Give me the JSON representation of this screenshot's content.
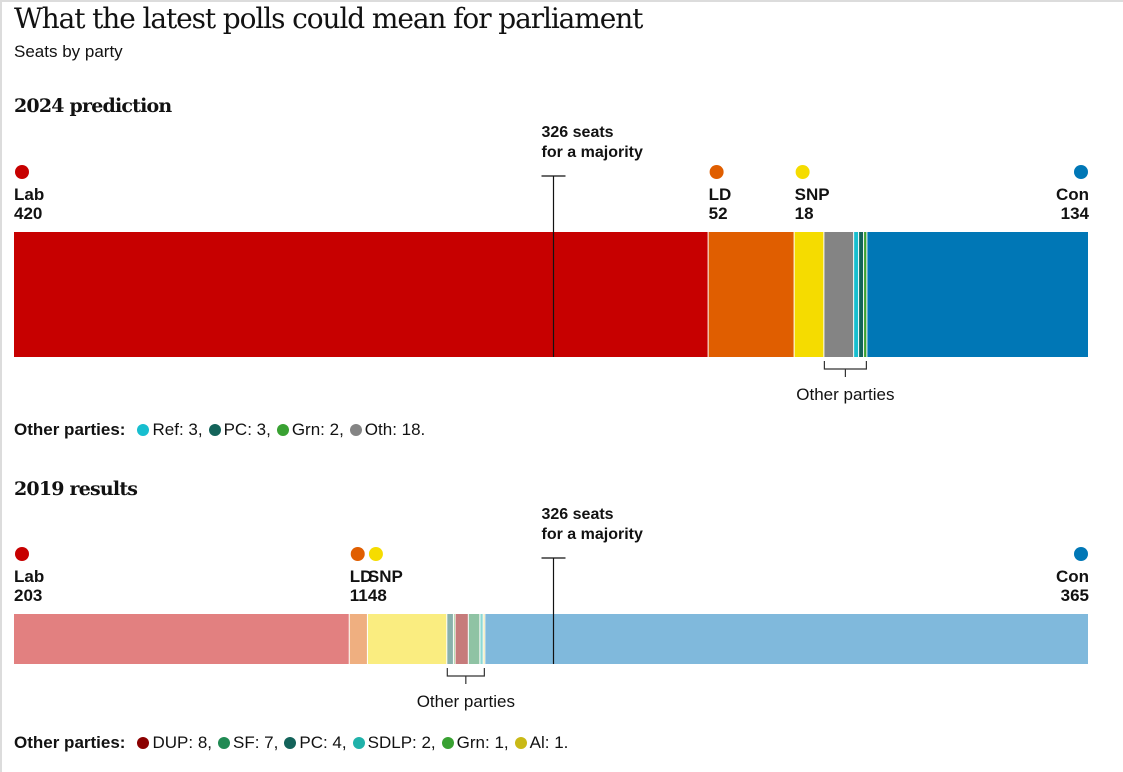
{
  "title": "What the latest polls could mean for parliament",
  "subtitle": "Seats by party",
  "total_seats": 650,
  "chart_data": [
    {
      "type": "bar",
      "orientation": "horizontal-stacked",
      "title": "2024 prediction",
      "majority": {
        "value": 326,
        "label_line1": "326 seats",
        "label_line2": "for a majority"
      },
      "segments": [
        {
          "party": "Lab",
          "seats": 420,
          "color": "#c70000",
          "labeled": true,
          "dot": "#c70000"
        },
        {
          "party": "LD",
          "seats": 52,
          "color": "#e05e00",
          "labeled": true,
          "dot": "#e05e00"
        },
        {
          "party": "SNP",
          "seats": 18,
          "color": "#f5dc00",
          "labeled": true,
          "dot": "#f5dc00"
        },
        {
          "party": "Oth",
          "seats": 18,
          "color": "#848484",
          "labeled": false
        },
        {
          "party": "Ref",
          "seats": 3,
          "color": "#17becf",
          "labeled": false
        },
        {
          "party": "PC",
          "seats": 3,
          "color": "#13635a",
          "labeled": false
        },
        {
          "party": "Grn",
          "seats": 2,
          "color": "#39a132",
          "labeled": false
        },
        {
          "party": "Con",
          "seats": 134,
          "color": "#0077b6",
          "labeled": true,
          "dot": "#0077b6",
          "align": "right"
        }
      ],
      "other_parties_label": "Other parties",
      "legend_heading": "Other parties:",
      "legend": [
        {
          "text": "Ref: 3,",
          "color": "#17becf"
        },
        {
          "text": "PC: 3,",
          "color": "#13635a"
        },
        {
          "text": "Grn: 2,",
          "color": "#39a132"
        },
        {
          "text": "Oth: 18.",
          "color": "#848484"
        }
      ]
    },
    {
      "type": "bar",
      "orientation": "horizontal-stacked",
      "title": "2019 results",
      "majority": {
        "value": 326,
        "label_line1": "326 seats",
        "label_line2": "for a majority"
      },
      "segments": [
        {
          "party": "Lab",
          "seats": 203,
          "color": "#e28080",
          "labeled": true,
          "dot": "#c70000"
        },
        {
          "party": "LD",
          "seats": 11,
          "color": "#efaf80",
          "labeled": true,
          "dot": "#e05e00"
        },
        {
          "party": "SNP",
          "seats": 48,
          "color": "#faed80",
          "labeled": true,
          "dot": "#f5dc00"
        },
        {
          "party": "PC",
          "seats": 4,
          "color": "#89b1ac",
          "labeled": false
        },
        {
          "party": "Grn",
          "seats": 1,
          "color": "#9cd098",
          "labeled": false
        },
        {
          "party": "DUP",
          "seats": 8,
          "color": "#c67b7b",
          "labeled": false
        },
        {
          "party": "SF",
          "seats": 7,
          "color": "#8fc3a4",
          "labeled": false
        },
        {
          "party": "SDLP",
          "seats": 2,
          "color": "#8cd9d4",
          "labeled": false
        },
        {
          "party": "Al",
          "seats": 1,
          "color": "#e4dc8c",
          "labeled": false
        },
        {
          "party": "Con",
          "seats": 365,
          "color": "#80b9dc",
          "labeled": true,
          "dot": "#0077b6",
          "align": "right"
        }
      ],
      "other_parties_label": "Other parties",
      "legend_heading": "Other parties:",
      "legend": [
        {
          "text": "DUP: 8,",
          "color": "#8b0000"
        },
        {
          "text": "SF: 7,",
          "color": "#208a53"
        },
        {
          "text": "PC: 4,",
          "color": "#13635a"
        },
        {
          "text": "SDLP: 2,",
          "color": "#20b2aa"
        },
        {
          "text": "Grn: 1,",
          "color": "#39a132"
        },
        {
          "text": "Al: 1.",
          "color": "#c9b916"
        }
      ]
    }
  ]
}
